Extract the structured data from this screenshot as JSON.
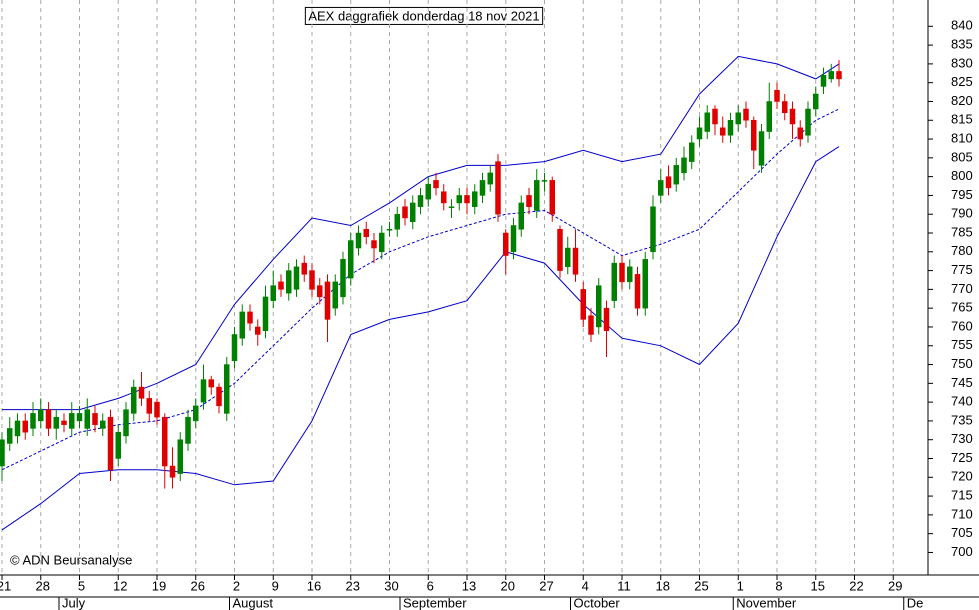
{
  "chart_data": {
    "type": "candlestick",
    "title": "AEX daggrafiek donderdag 18 nov 2021",
    "note": "© ADN Beursanalyse",
    "x": [
      "2021-06-21",
      "2021-06-22",
      "2021-06-23",
      "2021-06-24",
      "2021-06-25",
      "2021-06-28",
      "2021-06-29",
      "2021-06-30",
      "2021-07-01",
      "2021-07-02",
      "2021-07-05",
      "2021-07-06",
      "2021-07-07",
      "2021-07-08",
      "2021-07-09",
      "2021-07-12",
      "2021-07-13",
      "2021-07-14",
      "2021-07-15",
      "2021-07-16",
      "2021-07-19",
      "2021-07-20",
      "2021-07-21",
      "2021-07-22",
      "2021-07-23",
      "2021-07-26",
      "2021-07-27",
      "2021-07-28",
      "2021-07-29",
      "2021-07-30",
      "2021-08-02",
      "2021-08-03",
      "2021-08-04",
      "2021-08-05",
      "2021-08-06",
      "2021-08-09",
      "2021-08-10",
      "2021-08-11",
      "2021-08-12",
      "2021-08-13",
      "2021-08-16",
      "2021-08-17",
      "2021-08-18",
      "2021-08-19",
      "2021-08-20",
      "2021-08-23",
      "2021-08-24",
      "2021-08-25",
      "2021-08-26",
      "2021-08-27",
      "2021-08-30",
      "2021-08-31",
      "2021-09-01",
      "2021-09-02",
      "2021-09-03",
      "2021-09-06",
      "2021-09-07",
      "2021-09-08",
      "2021-09-09",
      "2021-09-10",
      "2021-09-13",
      "2021-09-14",
      "2021-09-15",
      "2021-09-16",
      "2021-09-17",
      "2021-09-20",
      "2021-09-21",
      "2021-09-22",
      "2021-09-23",
      "2021-09-24",
      "2021-09-27",
      "2021-09-28",
      "2021-09-29",
      "2021-09-30",
      "2021-10-01",
      "2021-10-04",
      "2021-10-05",
      "2021-10-06",
      "2021-10-07",
      "2021-10-08",
      "2021-10-11",
      "2021-10-12",
      "2021-10-13",
      "2021-10-14",
      "2021-10-15",
      "2021-10-18",
      "2021-10-19",
      "2021-10-20",
      "2021-10-21",
      "2021-10-22",
      "2021-10-25",
      "2021-10-26",
      "2021-10-27",
      "2021-10-28",
      "2021-10-29",
      "2021-11-01",
      "2021-11-02",
      "2021-11-03",
      "2021-11-04",
      "2021-11-05",
      "2021-11-08",
      "2021-11-09",
      "2021-11-10",
      "2021-11-11",
      "2021-11-12",
      "2021-11-15",
      "2021-11-16",
      "2021-11-17",
      "2021-11-18"
    ],
    "open": [
      723,
      729,
      731,
      735,
      733,
      735,
      738,
      733,
      735,
      733,
      735,
      733,
      737,
      733,
      736,
      725,
      731,
      737,
      744,
      741,
      740,
      736,
      723,
      721,
      729,
      735,
      740,
      746,
      744,
      737,
      751,
      757,
      764,
      760,
      759,
      767,
      772,
      769,
      770,
      777,
      775,
      771,
      772,
      765,
      768,
      773,
      781,
      786,
      783,
      780,
      786,
      786,
      792,
      788,
      792,
      794,
      799,
      796,
      792,
      793,
      795,
      792,
      795,
      798,
      804,
      785,
      780,
      786,
      795,
      791,
      799,
      799,
      786,
      776,
      781,
      770,
      763,
      760,
      765,
      767,
      777,
      772,
      774,
      765,
      780,
      795,
      800,
      798,
      801,
      804,
      810,
      812,
      818,
      813,
      811,
      814,
      818,
      815,
      803,
      812,
      823,
      820,
      818,
      813,
      811,
      818,
      824,
      826,
      828
    ],
    "high": [
      732,
      736,
      737,
      737,
      740,
      741,
      740,
      738,
      737,
      740,
      739,
      741,
      739,
      737,
      738,
      734,
      740,
      746,
      748,
      743,
      741,
      737,
      728,
      732,
      738,
      741,
      750,
      747,
      745,
      752,
      760,
      766,
      766,
      762,
      771,
      775,
      774,
      777,
      778,
      779,
      777,
      773,
      774,
      774,
      780,
      785,
      787,
      788,
      785,
      787,
      788,
      792,
      794,
      795,
      797,
      800,
      801,
      798,
      794,
      797,
      797,
      798,
      801,
      803,
      806,
      786,
      789,
      795,
      797,
      802,
      801,
      800,
      787,
      784,
      786,
      772,
      765,
      773,
      767,
      779,
      779,
      778,
      776,
      780,
      795,
      802,
      803,
      805,
      808,
      811,
      816,
      819,
      819,
      816,
      817,
      819,
      820,
      816,
      814,
      825,
      825,
      822,
      820,
      815,
      820,
      824,
      829,
      830,
      831
    ],
    "low": [
      719,
      727,
      729,
      730,
      731,
      733,
      731,
      730,
      732,
      731,
      733,
      731,
      732,
      731,
      719,
      723,
      729,
      735,
      739,
      735,
      734,
      717,
      717,
      719,
      727,
      733,
      738,
      742,
      737,
      735,
      749,
      755,
      759,
      755,
      757,
      765,
      768,
      767,
      768,
      772,
      768,
      766,
      756,
      763,
      766,
      771,
      779,
      782,
      777,
      778,
      784,
      784,
      787,
      786,
      790,
      792,
      795,
      791,
      789,
      791,
      790,
      790,
      793,
      796,
      788,
      774,
      778,
      784,
      790,
      789,
      796,
      788,
      773,
      774,
      772,
      760,
      756,
      758,
      752,
      765,
      770,
      770,
      763,
      763,
      778,
      793,
      795,
      796,
      799,
      802,
      808,
      810,
      811,
      809,
      809,
      812,
      813,
      802,
      801,
      810,
      818,
      815,
      810,
      808,
      809,
      816,
      822,
      825,
      824
    ],
    "close": [
      730,
      733,
      735,
      732,
      737,
      738,
      733,
      736,
      734,
      737,
      737,
      738,
      734,
      735,
      722,
      732,
      738,
      744,
      741,
      737,
      736,
      723,
      720,
      730,
      736,
      739,
      746,
      744,
      739,
      750,
      758,
      764,
      761,
      758,
      768,
      771,
      770,
      775,
      776,
      774,
      770,
      768,
      762,
      772,
      778,
      783,
      785,
      784,
      781,
      785,
      786,
      790,
      789,
      793,
      795,
      798,
      797,
      793,
      792,
      795,
      793,
      796,
      799,
      801,
      790,
      779,
      787,
      793,
      792,
      799,
      799,
      790,
      775,
      781,
      774,
      762,
      758,
      771,
      759,
      777,
      772,
      776,
      765,
      778,
      792,
      799,
      797,
      803,
      805,
      809,
      813,
      817,
      814,
      811,
      815,
      817,
      815,
      807,
      812,
      820,
      820,
      817,
      814,
      810,
      818,
      822,
      827,
      828,
      826
    ],
    "up_color": "#008000",
    "down_color": "#e00000",
    "bands": [
      {
        "color": "#0000cc",
        "x": [
          "2021-06-21",
          "2021-06-28",
          "2021-07-05",
          "2021-07-12",
          "2021-07-19",
          "2021-07-26",
          "2021-08-02",
          "2021-08-09",
          "2021-08-16",
          "2021-08-23",
          "2021-08-30",
          "2021-09-06",
          "2021-09-13",
          "2021-09-20",
          "2021-09-27",
          "2021-10-04",
          "2021-10-11",
          "2021-10-18",
          "2021-10-25",
          "2021-11-01",
          "2021-11-08",
          "2021-11-15",
          "2021-11-18"
        ],
        "values": [
          738,
          738,
          738,
          741,
          745,
          750,
          766,
          778,
          789,
          787,
          793,
          800,
          803,
          803,
          804,
          807,
          804,
          806,
          822,
          832,
          830,
          826,
          830
        ]
      },
      {
        "color": "#0000cc",
        "dashed": true,
        "x": [
          "2021-06-21",
          "2021-06-28",
          "2021-07-05",
          "2021-07-12",
          "2021-07-19",
          "2021-07-26",
          "2021-08-02",
          "2021-08-09",
          "2021-08-16",
          "2021-08-23",
          "2021-08-30",
          "2021-09-06",
          "2021-09-13",
          "2021-09-20",
          "2021-09-27",
          "2021-10-04",
          "2021-10-11",
          "2021-10-18",
          "2021-10-25",
          "2021-11-01",
          "2021-11-08",
          "2021-11-15",
          "2021-11-18"
        ],
        "values": [
          722,
          727,
          732,
          734,
          735,
          738,
          745,
          755,
          765,
          774,
          780,
          784,
          787,
          790,
          791,
          785,
          779,
          782,
          786,
          796,
          806,
          815,
          818
        ]
      },
      {
        "color": "#0000cc",
        "x": [
          "2021-06-21",
          "2021-06-28",
          "2021-07-05",
          "2021-07-12",
          "2021-07-19",
          "2021-07-26",
          "2021-08-02",
          "2021-08-09",
          "2021-08-16",
          "2021-08-23",
          "2021-08-30",
          "2021-09-06",
          "2021-09-13",
          "2021-09-20",
          "2021-09-27",
          "2021-10-04",
          "2021-10-11",
          "2021-10-18",
          "2021-10-25",
          "2021-11-01",
          "2021-11-08",
          "2021-11-15",
          "2021-11-18"
        ],
        "values": [
          706,
          713,
          721,
          722,
          722,
          721,
          718,
          719,
          735,
          758,
          762,
          764,
          767,
          780,
          777,
          766,
          757,
          755,
          750,
          761,
          784,
          804,
          808
        ]
      }
    ],
    "ylim": [
      694,
      847
    ],
    "yticks": [
      700,
      705,
      710,
      715,
      720,
      725,
      730,
      735,
      740,
      745,
      750,
      755,
      760,
      765,
      770,
      775,
      780,
      785,
      790,
      795,
      800,
      805,
      810,
      815,
      820,
      825,
      830,
      835,
      840
    ],
    "xticks": [
      {
        "value": "2021-06-21",
        "label": "21"
      },
      {
        "value": "2021-06-28",
        "label": "28"
      },
      {
        "value": "2021-07-05",
        "label": "5"
      },
      {
        "value": "2021-07-12",
        "label": "12"
      },
      {
        "value": "2021-07-19",
        "label": "19"
      },
      {
        "value": "2021-07-26",
        "label": "26"
      },
      {
        "value": "2021-08-02",
        "label": "2"
      },
      {
        "value": "2021-08-09",
        "label": "9"
      },
      {
        "value": "2021-08-16",
        "label": "16"
      },
      {
        "value": "2021-08-23",
        "label": "23"
      },
      {
        "value": "2021-08-30",
        "label": "30"
      },
      {
        "value": "2021-09-06",
        "label": "6"
      },
      {
        "value": "2021-09-13",
        "label": "13"
      },
      {
        "value": "2021-09-20",
        "label": "20"
      },
      {
        "value": "2021-09-27",
        "label": "27"
      },
      {
        "value": "2021-10-04",
        "label": "4"
      },
      {
        "value": "2021-10-11",
        "label": "11"
      },
      {
        "value": "2021-10-18",
        "label": "18"
      },
      {
        "value": "2021-10-25",
        "label": "25"
      },
      {
        "value": "2021-11-01",
        "label": "1"
      },
      {
        "value": "2021-11-08",
        "label": "8"
      },
      {
        "value": "2021-11-15",
        "label": "15"
      },
      {
        "value": "2021-11-22",
        "label": "22"
      },
      {
        "value": "2021-11-29",
        "label": "29"
      }
    ],
    "month_ticks": [
      {
        "value": "2021-07-01",
        "label": "July"
      },
      {
        "value": "2021-08-01",
        "label": "August"
      },
      {
        "value": "2021-09-01",
        "label": "September"
      },
      {
        "value": "2021-10-01",
        "label": "October"
      },
      {
        "value": "2021-11-01",
        "label": "November"
      },
      {
        "value": "2021-12-01",
        "label": "De"
      }
    ],
    "grid": true
  }
}
